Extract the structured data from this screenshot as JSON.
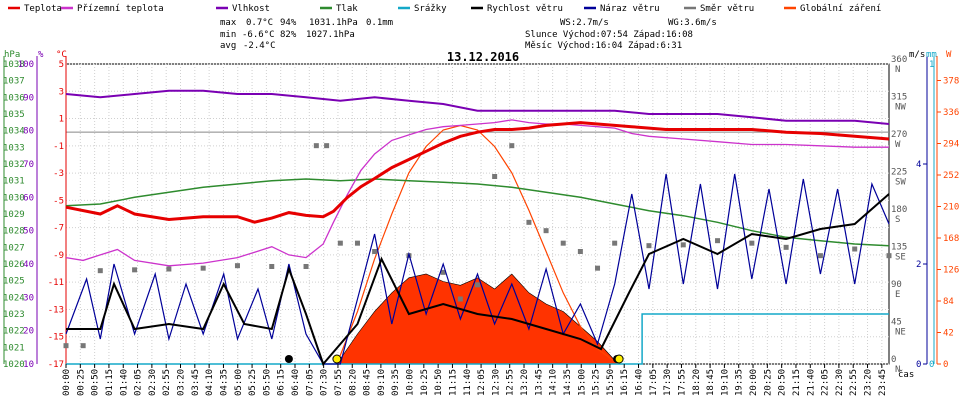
{
  "chart_data": {
    "type": "line",
    "title": "13.12.2016",
    "legend": [
      {
        "label": "Teplota",
        "color": "#e60000"
      },
      {
        "label": "Přízemní teplota",
        "color": "#cc33cc"
      },
      {
        "label": "Vlhkost",
        "color": "#7a00b3"
      },
      {
        "label": "Tlak",
        "color": "#2e8b2e"
      },
      {
        "label": "Srážky",
        "color": "#14a8c8"
      },
      {
        "label": "Rychlost větru",
        "color": "#000000"
      },
      {
        "label": "Náraz větru",
        "color": "#000099"
      },
      {
        "label": "Směr větru",
        "color": "#777777"
      },
      {
        "label": "Globální záření",
        "color": "#ff4400"
      }
    ],
    "summary": {
      "max_label": "max",
      "max_temp": "0.7°C",
      "max_hum": "94%",
      "max_press": "1031.1hPa",
      "max_rain": "0.1mm",
      "min_label": "min",
      "min_temp": "-6.6°C",
      "min_hum": "82%",
      "min_press": "1027.1hPa",
      "avg_label": "avg",
      "avg_temp": "-2.4°C",
      "ws": "WS:2.7m/s",
      "wg": "WG:3.6m/s",
      "sun": "Slunce Východ:07:54  Západ:16:08",
      "moon": "Měsíc  Východ:16:04  Západ:6:31"
    },
    "units": {
      "hpa": "hPa",
      "pct": "%",
      "degc": "°C",
      "ms": "m/s",
      "mm": "mm",
      "w": "W",
      "time": "čas"
    },
    "x_ticks": [
      "00:00",
      "00:25",
      "00:50",
      "01:15",
      "01:40",
      "02:05",
      "02:30",
      "02:55",
      "03:20",
      "03:45",
      "04:10",
      "04:35",
      "05:00",
      "05:25",
      "05:50",
      "06:15",
      "06:40",
      "07:05",
      "07:30",
      "07:55",
      "08:20",
      "08:45",
      "09:10",
      "09:35",
      "10:00",
      "10:25",
      "10:50",
      "11:15",
      "11:40",
      "12:05",
      "12:30",
      "12:55",
      "13:20",
      "13:45",
      "14:10",
      "14:35",
      "15:00",
      "15:25",
      "15:50",
      "16:15",
      "16:40",
      "17:05",
      "17:30",
      "17:55",
      "18:20",
      "18:45",
      "19:10",
      "19:35",
      "20:00",
      "20:25",
      "20:50",
      "21:15",
      "21:40",
      "22:05",
      "22:30",
      "22:55",
      "23:20",
      "23:45"
    ],
    "axes": {
      "pressure": {
        "label": "hPa",
        "range": [
          1020,
          1038
        ],
        "ticks": [
          "1020",
          "1021",
          "1022",
          "1023",
          "1024",
          "1025",
          "1026",
          "1027",
          "1028",
          "1029",
          "1030",
          "1031",
          "1032",
          "1033",
          "1034",
          "1035",
          "1036",
          "1037",
          "1038"
        ]
      },
      "humidity": {
        "label": "%",
        "range": [
          10,
          100
        ],
        "ticks": [
          "10",
          "20",
          "30",
          "40",
          "50",
          "60",
          "70",
          "80",
          "90",
          "100"
        ]
      },
      "temperature": {
        "label": "°C",
        "range": [
          -17,
          5
        ],
        "ticks": [
          "-17",
          "-15",
          "-13",
          "-11",
          "-9",
          "-7",
          "-5",
          "-3",
          "-1",
          "1",
          "3",
          "5"
        ]
      },
      "direction": {
        "ticks": [
          {
            "v": "0",
            "d": "N"
          },
          {
            "v": "45",
            "d": "NE"
          },
          {
            "v": "90",
            "d": "E"
          },
          {
            "v": "135",
            "d": "SE"
          },
          {
            "v": "180",
            "d": "S"
          },
          {
            "v": "225",
            "d": "SW"
          },
          {
            "v": "270",
            "d": "W"
          },
          {
            "v": "315",
            "d": "NW"
          },
          {
            "v": "360",
            "d": "N"
          }
        ]
      },
      "wind": {
        "label": "m/s",
        "range": [
          0,
          6
        ],
        "ticks": [
          "0",
          "2",
          "4"
        ]
      },
      "rain": {
        "label": "mm",
        "range": [
          0,
          1
        ],
        "ticks": [
          "0",
          "1"
        ]
      },
      "radiation": {
        "label": "W",
        "range": [
          0,
          400
        ],
        "ticks": [
          "0",
          "42",
          "84",
          "126",
          "168",
          "210",
          "252",
          "294",
          "336",
          "378"
        ]
      }
    },
    "series": {
      "temperature": [
        [
          0,
          -5.5
        ],
        [
          1,
          -6.0
        ],
        [
          1.5,
          -5.4
        ],
        [
          2,
          -6.0
        ],
        [
          3,
          -6.4
        ],
        [
          4,
          -6.2
        ],
        [
          5,
          -6.2
        ],
        [
          5.5,
          -6.6
        ],
        [
          6,
          -6.3
        ],
        [
          6.5,
          -5.9
        ],
        [
          7,
          -6.1
        ],
        [
          7.5,
          -6.2
        ],
        [
          7.8,
          -5.8
        ],
        [
          8.2,
          -4.8
        ],
        [
          8.6,
          -4.0
        ],
        [
          9,
          -3.4
        ],
        [
          9.5,
          -2.6
        ],
        [
          10,
          -2.0
        ],
        [
          10.5,
          -1.4
        ],
        [
          11,
          -0.8
        ],
        [
          11.5,
          -0.3
        ],
        [
          12,
          0.0
        ],
        [
          12.5,
          0.2
        ],
        [
          13,
          0.2
        ],
        [
          13.5,
          0.3
        ],
        [
          14,
          0.5
        ],
        [
          14.5,
          0.6
        ],
        [
          15,
          0.7
        ],
        [
          15.5,
          0.6
        ],
        [
          16,
          0.5
        ],
        [
          16.5,
          0.4
        ],
        [
          17,
          0.3
        ],
        [
          17.5,
          0.2
        ],
        [
          18,
          0.2
        ],
        [
          19,
          0.2
        ],
        [
          20,
          0.2
        ],
        [
          21,
          0.0
        ],
        [
          22,
          -0.1
        ],
        [
          23,
          -0.3
        ],
        [
          24,
          -0.5
        ]
      ],
      "ground_temperature": [
        [
          0,
          -9.2
        ],
        [
          0.5,
          -9.4
        ],
        [
          1,
          -9.0
        ],
        [
          1.5,
          -8.6
        ],
        [
          2,
          -9.4
        ],
        [
          3,
          -9.8
        ],
        [
          4,
          -9.6
        ],
        [
          5,
          -9.2
        ],
        [
          5.5,
          -8.8
        ],
        [
          6,
          -8.4
        ],
        [
          6.5,
          -9.0
        ],
        [
          7,
          -9.2
        ],
        [
          7.5,
          -8.2
        ],
        [
          7.8,
          -6.6
        ],
        [
          8.2,
          -4.6
        ],
        [
          8.6,
          -2.8
        ],
        [
          9,
          -1.6
        ],
        [
          9.5,
          -0.6
        ],
        [
          10,
          -0.2
        ],
        [
          10.5,
          0.2
        ],
        [
          11,
          0.4
        ],
        [
          11.5,
          0.5
        ],
        [
          12,
          0.6
        ],
        [
          12.5,
          0.7
        ],
        [
          13,
          0.9
        ],
        [
          13.5,
          0.7
        ],
        [
          14,
          0.6
        ],
        [
          14.5,
          0.6
        ],
        [
          15,
          0.5
        ],
        [
          15.5,
          0.4
        ],
        [
          16,
          0.3
        ],
        [
          16.5,
          -0.1
        ],
        [
          17,
          -0.3
        ],
        [
          18,
          -0.5
        ],
        [
          19,
          -0.7
        ],
        [
          20,
          -0.9
        ],
        [
          21,
          -0.9
        ],
        [
          22,
          -1.0
        ],
        [
          23,
          -1.1
        ],
        [
          24,
          -1.1
        ]
      ],
      "humidity": [
        [
          0,
          91
        ],
        [
          1,
          90
        ],
        [
          2,
          91
        ],
        [
          3,
          92
        ],
        [
          4,
          92
        ],
        [
          5,
          91
        ],
        [
          6,
          91
        ],
        [
          7,
          90
        ],
        [
          8,
          89
        ],
        [
          9,
          90
        ],
        [
          10,
          89
        ],
        [
          11,
          88
        ],
        [
          12,
          86
        ],
        [
          13,
          86
        ],
        [
          14,
          86
        ],
        [
          15,
          86
        ],
        [
          16,
          86
        ],
        [
          17,
          85
        ],
        [
          18,
          85
        ],
        [
          19,
          85
        ],
        [
          20,
          84
        ],
        [
          21,
          83
        ],
        [
          22,
          83
        ],
        [
          23,
          83
        ],
        [
          24,
          82
        ]
      ],
      "pressure": [
        [
          0,
          1029.5
        ],
        [
          1,
          1029.6
        ],
        [
          2,
          1030.0
        ],
        [
          3,
          1030.3
        ],
        [
          4,
          1030.6
        ],
        [
          5,
          1030.8
        ],
        [
          6,
          1031.0
        ],
        [
          7,
          1031.1
        ],
        [
          8,
          1031.0
        ],
        [
          9,
          1031.1
        ],
        [
          10,
          1031.0
        ],
        [
          11,
          1030.9
        ],
        [
          12,
          1030.8
        ],
        [
          13,
          1030.6
        ],
        [
          14,
          1030.3
        ],
        [
          15,
          1030.0
        ],
        [
          16,
          1029.6
        ],
        [
          17,
          1029.2
        ],
        [
          18,
          1028.9
        ],
        [
          19,
          1028.5
        ],
        [
          20,
          1028.0
        ],
        [
          21,
          1027.6
        ],
        [
          22,
          1027.4
        ],
        [
          23,
          1027.2
        ],
        [
          24,
          1027.1
        ]
      ],
      "wind_speed": [
        [
          0,
          0.7
        ],
        [
          1,
          0.7
        ],
        [
          1.4,
          1.6
        ],
        [
          2,
          0.7
        ],
        [
          3,
          0.8
        ],
        [
          4,
          0.7
        ],
        [
          4.6,
          1.6
        ],
        [
          5.2,
          0.8
        ],
        [
          6,
          0.7
        ],
        [
          6.5,
          1.9
        ],
        [
          7,
          1.0
        ],
        [
          7.5,
          0
        ],
        [
          8.5,
          0.8
        ],
        [
          9.2,
          2.1
        ],
        [
          10,
          1.0
        ],
        [
          11,
          1.2
        ],
        [
          12,
          1.0
        ],
        [
          13,
          0.9
        ],
        [
          14,
          0.7
        ],
        [
          15,
          0.5
        ],
        [
          15.6,
          0.3
        ],
        [
          16.4,
          1.4
        ],
        [
          17,
          2.2
        ],
        [
          18,
          2.5
        ],
        [
          19,
          2.2
        ],
        [
          20,
          2.6
        ],
        [
          21,
          2.5
        ],
        [
          22,
          2.7
        ],
        [
          23,
          2.8
        ],
        [
          24,
          3.4
        ]
      ],
      "wind_gust": [
        [
          0,
          0.6
        ],
        [
          0.6,
          1.7
        ],
        [
          1,
          0.5
        ],
        [
          1.4,
          2.0
        ],
        [
          2,
          0.6
        ],
        [
          2.6,
          1.8
        ],
        [
          3,
          0.5
        ],
        [
          3.5,
          1.6
        ],
        [
          4,
          0.6
        ],
        [
          4.6,
          1.8
        ],
        [
          5,
          0.5
        ],
        [
          5.6,
          1.5
        ],
        [
          6,
          0.5
        ],
        [
          6.5,
          2.0
        ],
        [
          7,
          0.6
        ],
        [
          7.5,
          0
        ],
        [
          8,
          0
        ],
        [
          8.5,
          1.3
        ],
        [
          9,
          2.6
        ],
        [
          9.5,
          0.8
        ],
        [
          10,
          2.2
        ],
        [
          10.5,
          1.0
        ],
        [
          11,
          2.0
        ],
        [
          11.5,
          0.9
        ],
        [
          12,
          1.8
        ],
        [
          12.5,
          0.8
        ],
        [
          13,
          1.6
        ],
        [
          13.5,
          0.7
        ],
        [
          14,
          1.9
        ],
        [
          14.5,
          0.6
        ],
        [
          15,
          1.2
        ],
        [
          15.5,
          0.4
        ],
        [
          16,
          1.6
        ],
        [
          16.5,
          3.4
        ],
        [
          17,
          1.5
        ],
        [
          17.5,
          3.8
        ],
        [
          18,
          1.6
        ],
        [
          18.5,
          3.6
        ],
        [
          19,
          1.5
        ],
        [
          19.5,
          3.8
        ],
        [
          20,
          1.7
        ],
        [
          20.5,
          3.5
        ],
        [
          21,
          1.6
        ],
        [
          21.5,
          3.7
        ],
        [
          22,
          1.8
        ],
        [
          22.5,
          3.5
        ],
        [
          23,
          1.6
        ],
        [
          23.5,
          3.6
        ],
        [
          24,
          2.8
        ]
      ],
      "wind_direction": [
        [
          0,
          22
        ],
        [
          0.5,
          22
        ],
        [
          1,
          112
        ],
        [
          2,
          113
        ],
        [
          3,
          114
        ],
        [
          4,
          115
        ],
        [
          5,
          118
        ],
        [
          6,
          117
        ],
        [
          7,
          117
        ],
        [
          7.3,
          262
        ],
        [
          7.6,
          262
        ],
        [
          8,
          145
        ],
        [
          8.5,
          145
        ],
        [
          9,
          135
        ],
        [
          10,
          130
        ],
        [
          11,
          110
        ],
        [
          11.5,
          78
        ],
        [
          12,
          95
        ],
        [
          12.5,
          225
        ],
        [
          13,
          262
        ],
        [
          13.5,
          170
        ],
        [
          14,
          160
        ],
        [
          14.5,
          145
        ],
        [
          15,
          135
        ],
        [
          15.5,
          115
        ],
        [
          16,
          145
        ],
        [
          17,
          142
        ],
        [
          18,
          143
        ],
        [
          19,
          148
        ],
        [
          20,
          145
        ],
        [
          21,
          140
        ],
        [
          22,
          130
        ],
        [
          23,
          138
        ],
        [
          24,
          130
        ]
      ],
      "rain": [
        [
          0,
          0
        ],
        [
          16.8,
          0
        ],
        [
          16.8,
          0.1
        ],
        [
          24,
          0.1
        ]
      ],
      "radiation": [
        [
          7.9,
          0
        ],
        [
          8.5,
          40
        ],
        [
          9,
          70
        ],
        [
          9.5,
          95
        ],
        [
          10,
          115
        ],
        [
          10.5,
          120
        ],
        [
          11,
          110
        ],
        [
          11.5,
          105
        ],
        [
          12,
          115
        ],
        [
          12.5,
          100
        ],
        [
          13,
          120
        ],
        [
          13.5,
          95
        ],
        [
          14,
          80
        ],
        [
          14.5,
          70
        ],
        [
          15,
          50
        ],
        [
          15.5,
          30
        ],
        [
          16.1,
          0
        ]
      ],
      "radiation_theoretical": [
        [
          7.9,
          0
        ],
        [
          8.5,
          70
        ],
        [
          9,
          140
        ],
        [
          9.5,
          200
        ],
        [
          10,
          255
        ],
        [
          10.5,
          290
        ],
        [
          11,
          312
        ],
        [
          11.5,
          318
        ],
        [
          12,
          312
        ],
        [
          12.5,
          290
        ],
        [
          13,
          255
        ],
        [
          13.5,
          205
        ],
        [
          14,
          150
        ],
        [
          14.5,
          95
        ],
        [
          15,
          50
        ],
        [
          15.5,
          20
        ],
        [
          16.1,
          0
        ]
      ]
    },
    "markers": {
      "moon_times": [
        6.5,
        16.07
      ],
      "sun_times": [
        7.9,
        16.13
      ]
    }
  }
}
